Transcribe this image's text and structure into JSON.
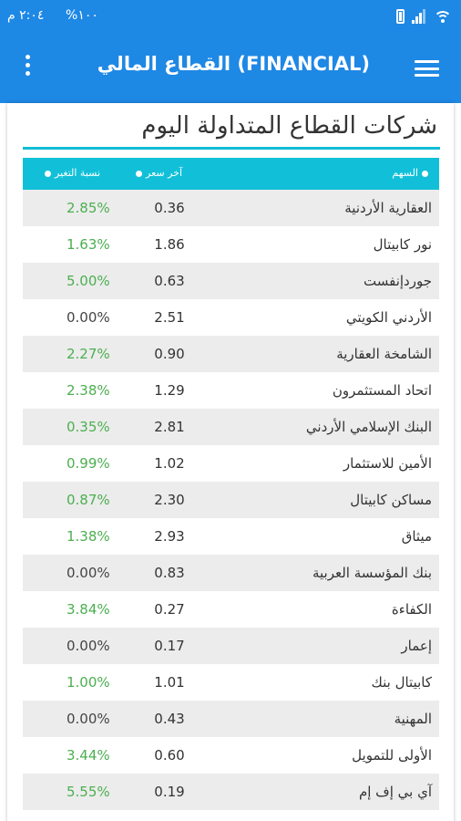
{
  "status_bar": {
    "time": "٢:٠٤ م",
    "battery": "%١٠٠",
    "icons": [
      "signal-icon",
      "wifi-icon",
      "battery-icon"
    ]
  },
  "app_bar": {
    "title": "القطاع المالي (FINANCIAL)",
    "menu_icon": "hamburger-menu-icon",
    "more_icon": "more-vertical-icon"
  },
  "main": {
    "heading": "شركات القطاع المتداولة اليوم",
    "columns": {
      "stock": "السهم",
      "last_price": "آخر سعر",
      "change": "نسبة التغير"
    },
    "rows": [
      {
        "name": "العقارية الأردنية",
        "price": "0.36",
        "change": "2.85%",
        "dir": "up"
      },
      {
        "name": "نور كابيتال",
        "price": "1.86",
        "change": "1.63%",
        "dir": "up"
      },
      {
        "name": "جوردإنفست",
        "price": "0.63",
        "change": "5.00%",
        "dir": "up"
      },
      {
        "name": "الأردني الكويتي",
        "price": "2.51",
        "change": "0.00%",
        "dir": "flat"
      },
      {
        "name": "الشامخة العقارية",
        "price": "0.90",
        "change": "2.27%",
        "dir": "up"
      },
      {
        "name": "اتحاد المستثمرون",
        "price": "1.29",
        "change": "2.38%",
        "dir": "up"
      },
      {
        "name": "البنك الإسلامي الأردني",
        "price": "2.81",
        "change": "0.35%",
        "dir": "up"
      },
      {
        "name": "الأمين للاستثمار",
        "price": "1.02",
        "change": "0.99%",
        "dir": "up"
      },
      {
        "name": "مساكن كابيتال",
        "price": "2.30",
        "change": "0.87%",
        "dir": "up"
      },
      {
        "name": "ميثاق",
        "price": "2.93",
        "change": "1.38%",
        "dir": "up"
      },
      {
        "name": "بنك المؤسسة العربية",
        "price": "0.83",
        "change": "0.00%",
        "dir": "flat"
      },
      {
        "name": "الكفاءة",
        "price": "0.27",
        "change": "3.84%",
        "dir": "up"
      },
      {
        "name": "إعمار",
        "price": "0.17",
        "change": "0.00%",
        "dir": "flat"
      },
      {
        "name": "كابيتال بنك",
        "price": "1.01",
        "change": "1.00%",
        "dir": "up"
      },
      {
        "name": "المهنية",
        "price": "0.43",
        "change": "0.00%",
        "dir": "flat"
      },
      {
        "name": "الأولى للتمويل",
        "price": "0.60",
        "change": "3.44%",
        "dir": "up"
      },
      {
        "name": "آي بي إف إم",
        "price": "0.19",
        "change": "5.55%",
        "dir": "up"
      }
    ]
  },
  "colors": {
    "primary": "#1e88e5",
    "table_header": "#11c0d8",
    "positive": "#4caf50",
    "row_alt": "#ececec"
  }
}
